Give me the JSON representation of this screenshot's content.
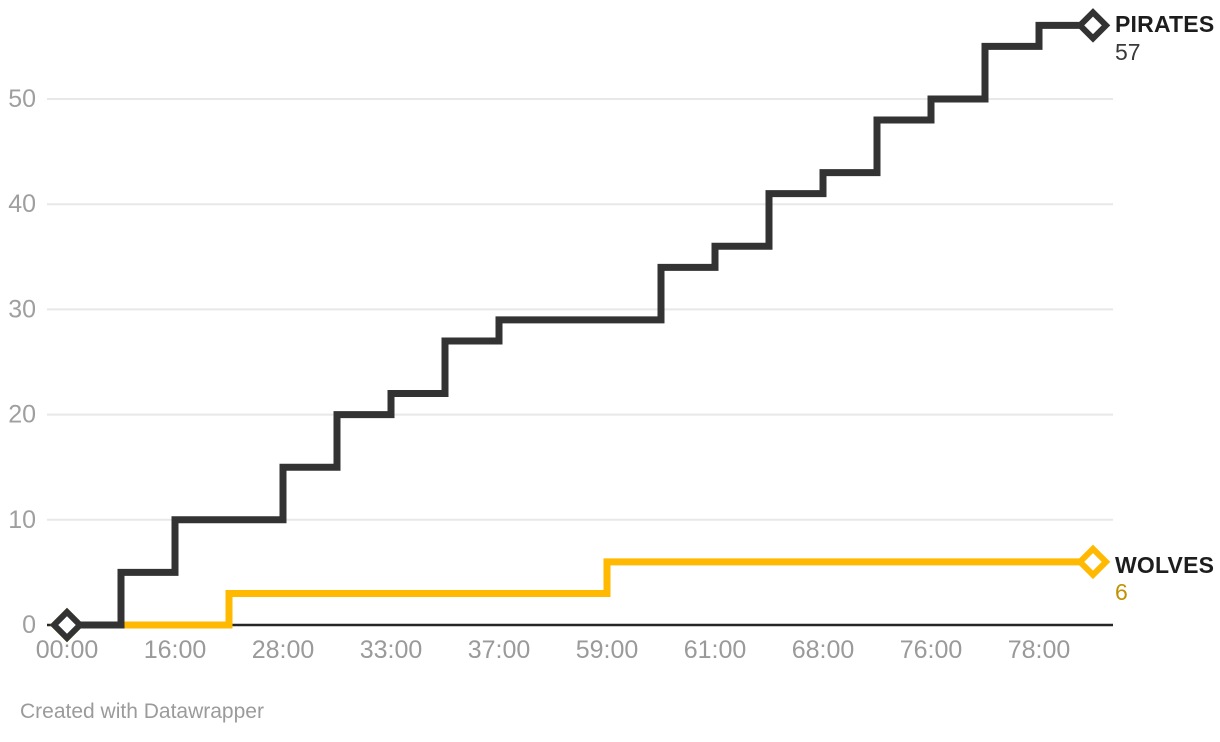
{
  "chart_data": {
    "type": "line",
    "line_style": "step-after",
    "title": "",
    "xlabel": "",
    "ylabel": "",
    "num_points": 20,
    "x_tick_labels": [
      "00:00",
      "16:00",
      "28:00",
      "33:00",
      "37:00",
      "59:00",
      "61:00",
      "68:00",
      "76:00",
      "78:00"
    ],
    "x_tick_point_indices": [
      0,
      2,
      4,
      6,
      8,
      10,
      12,
      14,
      16,
      18
    ],
    "y_ticks": [
      0,
      10,
      20,
      30,
      40,
      50
    ],
    "ylim": [
      0,
      58
    ],
    "grid": "horizontal",
    "marker": "diamond-at-first-and-last-point",
    "legend_position": "direct-end-labels-right",
    "series": [
      {
        "name": "PIRATES",
        "end_value_label": "57",
        "color": "#333333",
        "value_label_color": "#3a3a3a",
        "values": [
          0,
          5,
          10,
          10,
          15,
          20,
          22,
          27,
          29,
          29,
          29,
          34,
          36,
          41,
          43,
          48,
          50,
          55,
          57,
          57
        ]
      },
      {
        "name": "WOLVES",
        "end_value_label": "6",
        "color": "#ffb900",
        "value_label_color": "#c09100",
        "values": [
          0,
          0,
          0,
          3,
          3,
          3,
          3,
          3,
          3,
          3,
          6,
          6,
          6,
          6,
          6,
          6,
          6,
          6,
          6,
          6
        ]
      }
    ]
  },
  "axes": {
    "x_label_color": "#9a9a9a",
    "y_label_color": "#9f9f9f",
    "grid_color": "#e8e8e8",
    "baseline_color": "#262626"
  },
  "footer": {
    "attribution": "Created with Datawrapper",
    "color": "#9b9b9b"
  }
}
